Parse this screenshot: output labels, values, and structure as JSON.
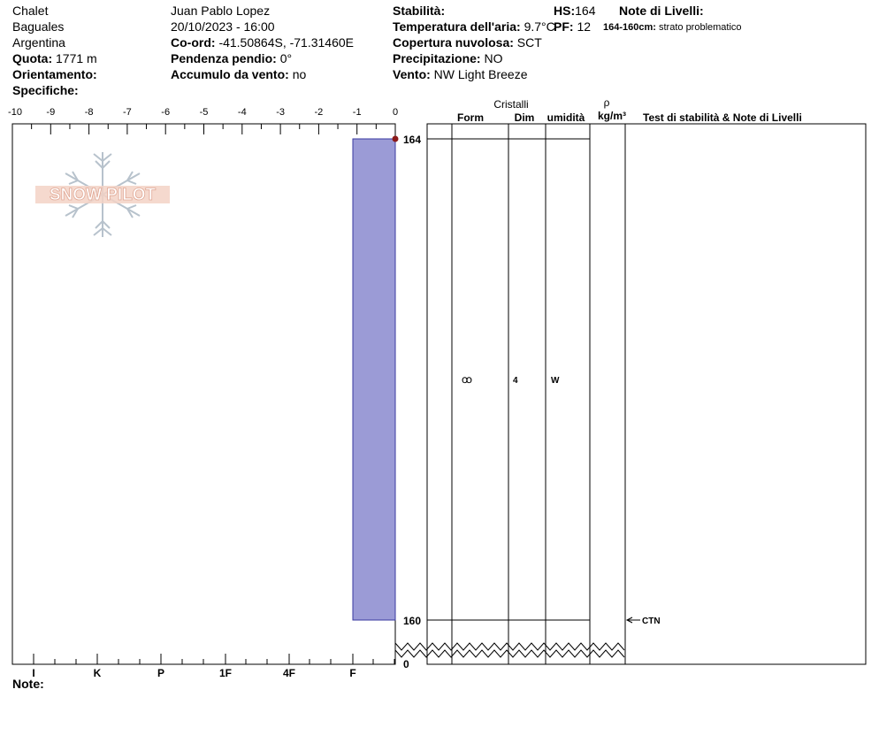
{
  "header": {
    "location": "Chalet",
    "region": "Baguales",
    "country": "Argentina",
    "elevation_label": "Quota:",
    "elevation_value": "1771 m",
    "aspect_label": "Orientamento:",
    "aspect_value": "",
    "specifics_label": "Specifiche:",
    "observer": "Juan Pablo  Lopez",
    "datetime": "20/10/2023 - 16:00",
    "coords_label": "Co-ord:",
    "coords_value": "-41.50864S, -71.31460E",
    "slope_label": "Pendenza pendio:",
    "slope_value": "0°",
    "wind_loading_label": "Accumulo da vento:",
    "wind_loading_value": "no",
    "stability_label": "Stabilità:",
    "stability_value": "",
    "air_temp_label": "Temperatura dell'aria:",
    "air_temp_value": "9.7°C",
    "sky_label": "Copertura nuvolosa:",
    "sky_value": "SCT",
    "precip_label": "Precipitazione:",
    "precip_value": "NO",
    "wind_label": "Vento:",
    "wind_value": "NW Light Breeze",
    "hs_label": "HS:",
    "hs_value": "164",
    "pf_label": "PF:",
    "pf_value": "12",
    "layer_notes_label": "Note di Livelli:",
    "layer_note_range": "164-160cm:",
    "layer_note_text": "strato problematico"
  },
  "logo_text": "SNOW PILOT",
  "chart_data": {
    "type": "snow-profile",
    "temperature_axis": {
      "ticks": [
        "-10",
        "-9",
        "-8",
        "-7",
        "-6",
        "-5",
        "-4",
        "-3",
        "-2",
        "-1",
        "0"
      ],
      "range": [
        -10,
        0
      ]
    },
    "hardness_axis": {
      "ticks": [
        "I",
        "K",
        "P",
        "1F",
        "4F",
        "F"
      ]
    },
    "height_range_cm": [
      160,
      164
    ],
    "height_labels": [
      "164",
      "160",
      "0"
    ],
    "column_headers": {
      "crystals": "Cristalli",
      "form": "Form",
      "size": "Dim",
      "moisture": "umidità",
      "density_symbol": "ρ",
      "density_unit": "kg/m³",
      "tests": "Test di stabilità & Note di Livelli"
    },
    "layers": [
      {
        "top_cm": 164,
        "bottom_cm": 160,
        "hardness": "F",
        "grain_form_icon": "rounded-grain-icon",
        "grain_form_glyph": "ꝏ",
        "grain_size": "4",
        "moisture": "W",
        "color": "#9b9bd6"
      }
    ],
    "tests": [
      {
        "label": "CTN",
        "height_cm": 160
      }
    ],
    "footer_label": "Note:",
    "colors": {
      "layer_fill": "#9b9bd6",
      "marker": "#8b1a1a",
      "logo": "#e8b8a8",
      "logo_flake": "#b7c2cc"
    }
  }
}
